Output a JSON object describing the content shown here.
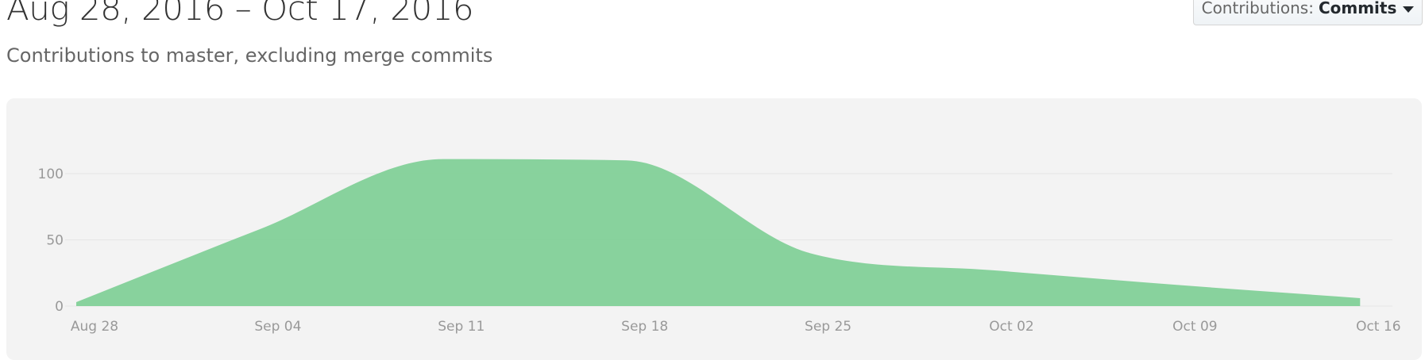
{
  "header": {
    "date_range": "Aug 28, 2016 – Oct 17, 2016",
    "subtitle": "Contributions to master, excluding merge commits"
  },
  "contributions_select": {
    "prefix": "Contributions:",
    "value": "Commits",
    "icon": "caret-down-icon"
  },
  "colors": {
    "area_fill": "#7fcf96",
    "panel_bg": "#f3f3f3",
    "grid": "#e6e6e6",
    "axis_text": "#999999"
  },
  "chart_data": {
    "type": "area",
    "title": "",
    "xlabel": "",
    "ylabel": "",
    "ylim": [
      0,
      130
    ],
    "grid": true,
    "y_ticks": [
      0,
      50,
      100
    ],
    "x_ticks": [
      "Aug 28",
      "Sep 04",
      "Sep 11",
      "Sep 18",
      "Sep 25",
      "Oct 02",
      "Oct 09",
      "Oct 16"
    ],
    "x_tick_days": [
      0,
      7,
      14,
      21,
      28,
      35,
      42,
      49
    ],
    "x_domain": [
      0,
      49.5
    ],
    "series": [
      {
        "x": [
          "Aug 28",
          "Sep 04",
          "Sep 11",
          "Sep 18",
          "Sep 25",
          "Oct 02",
          "Oct 09",
          "Oct 16"
        ],
        "days": [
          0,
          7,
          14,
          21,
          28,
          35,
          42,
          49
        ],
        "values": [
          3,
          58,
          111,
          110,
          40,
          27,
          16,
          6
        ]
      }
    ]
  }
}
